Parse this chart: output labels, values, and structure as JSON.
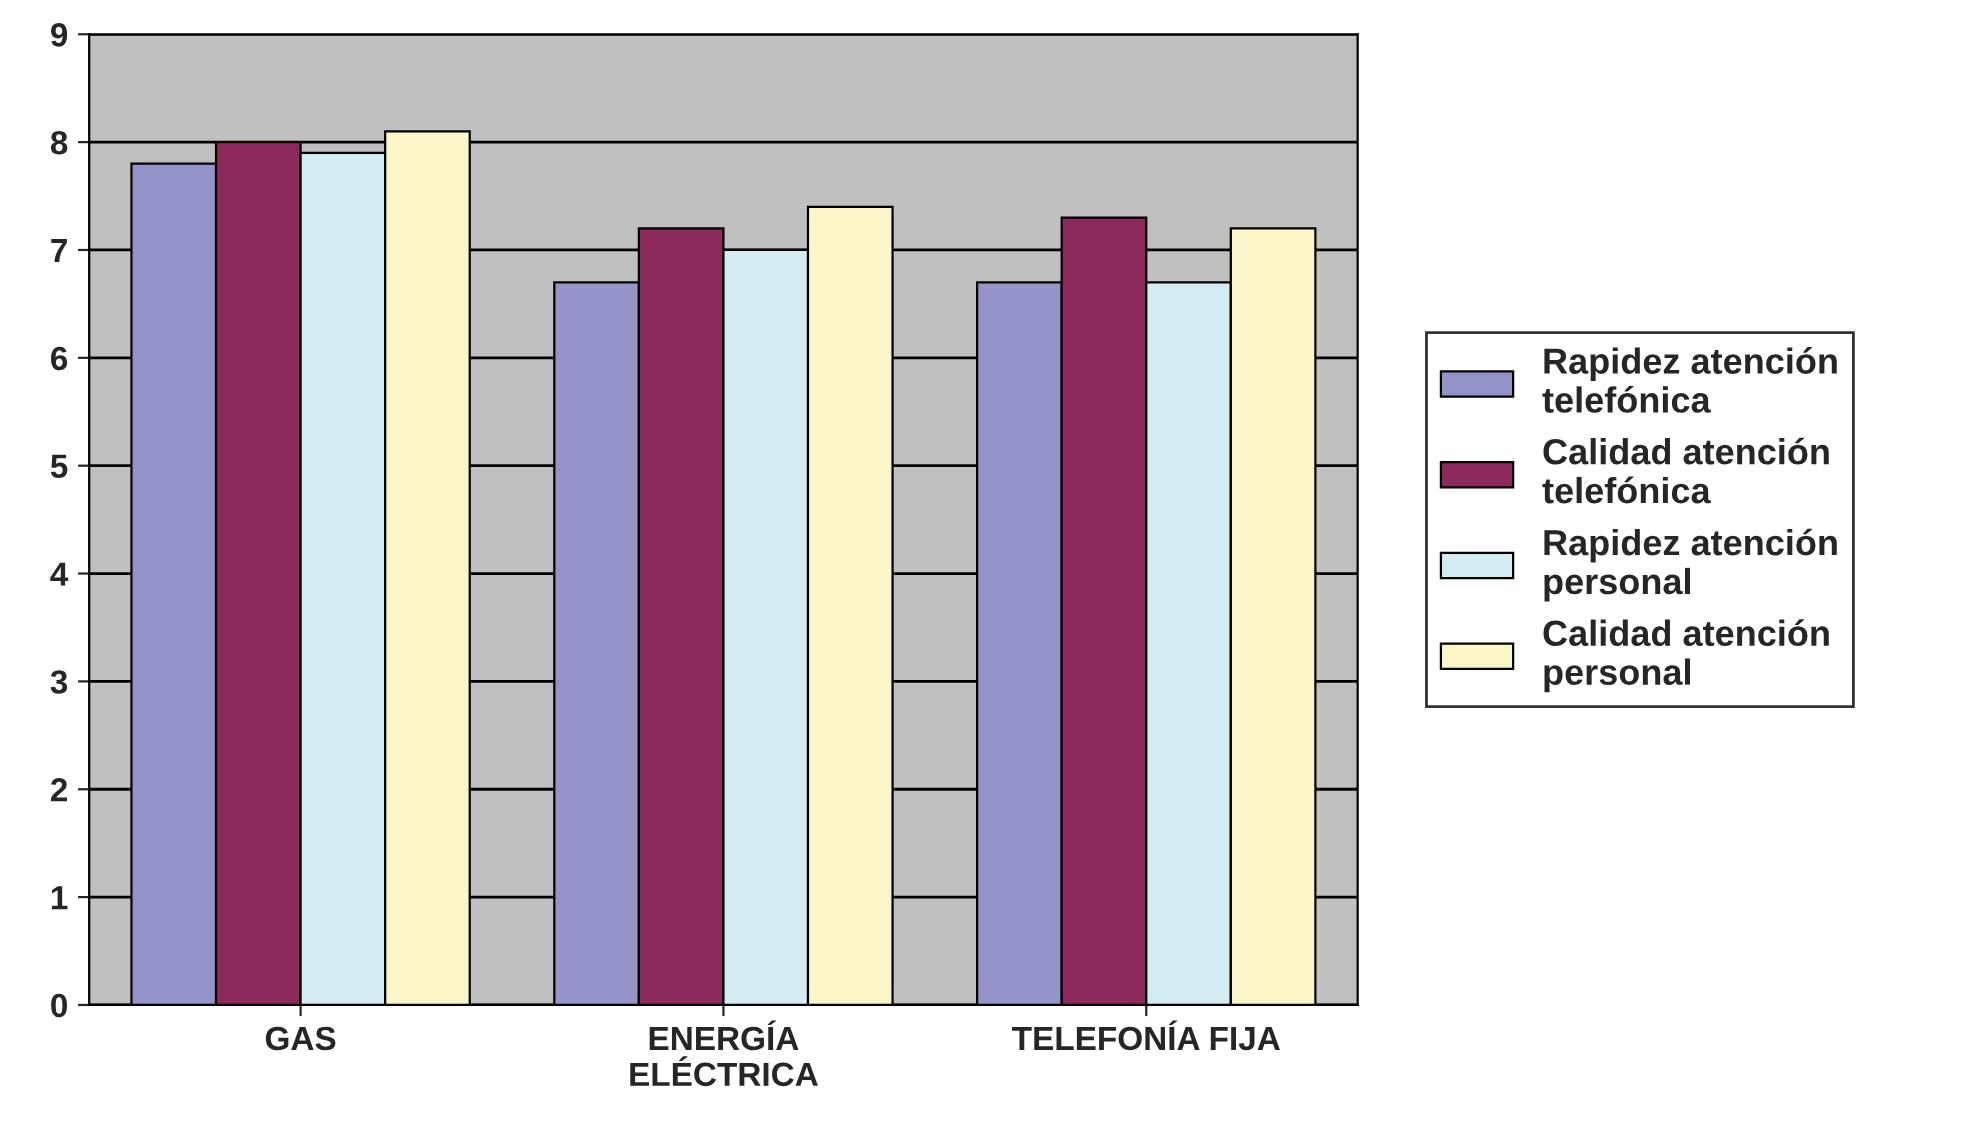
{
  "chart_data": {
    "type": "bar",
    "categories": [
      "GAS",
      "ENERGÍA\nELÉCTRICA",
      "TELEFONÍA FIJA"
    ],
    "series": [
      {
        "name": "Rapidez atención\ntelefónica",
        "color": "#9494c8",
        "values": [
          7.8,
          6.7,
          6.7
        ]
      },
      {
        "name": "Calidad atención\ntelefónica",
        "color": "#8c2a5c",
        "values": [
          8.0,
          7.2,
          7.3
        ]
      },
      {
        "name": "Rapidez atención\npersonal",
        "color": "#d2ecf2",
        "values": [
          7.9,
          7.0,
          6.7
        ]
      },
      {
        "name": "Calidad atención\npersonal",
        "color": "#faf6c8",
        "values": [
          8.1,
          7.4,
          7.2
        ]
      }
    ],
    "ylim": [
      0,
      9
    ],
    "yticks": [
      0,
      1,
      2,
      3,
      4,
      5,
      6,
      7,
      8,
      9
    ],
    "grid": "y",
    "legend": "right"
  }
}
